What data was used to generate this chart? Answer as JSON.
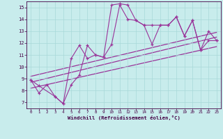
{
  "xlabel": "Windchill (Refroidissement éolien,°C)",
  "bg_color": "#c8ecec",
  "line_color": "#993399",
  "ylim": [
    6.5,
    15.5
  ],
  "xlim": [
    -0.5,
    23.5
  ],
  "yticks": [
    7,
    8,
    9,
    10,
    11,
    12,
    13,
    14,
    15
  ],
  "xticks": [
    0,
    1,
    2,
    3,
    4,
    5,
    6,
    7,
    8,
    9,
    10,
    11,
    12,
    13,
    14,
    15,
    16,
    17,
    18,
    19,
    20,
    21,
    22,
    23
  ],
  "curve1_x": [
    0,
    1,
    2,
    3,
    4,
    5,
    6,
    7,
    8,
    9,
    10,
    11,
    12,
    13,
    14,
    15,
    16,
    17,
    18,
    19,
    20,
    21,
    22,
    23
  ],
  "curve1_y": [
    8.9,
    7.8,
    8.5,
    7.5,
    6.9,
    10.7,
    11.8,
    10.7,
    11.0,
    10.8,
    15.2,
    15.3,
    15.2,
    13.9,
    13.5,
    13.5,
    13.5,
    13.5,
    14.2,
    12.6,
    13.9,
    11.4,
    13.0,
    12.2
  ],
  "curve2_x": [
    0,
    1,
    3,
    4,
    5,
    6,
    7,
    8,
    9,
    10,
    11,
    12,
    13,
    14,
    15,
    16,
    17,
    18,
    19,
    20,
    21,
    22,
    23
  ],
  "curve2_y": [
    8.9,
    8.4,
    7.5,
    6.9,
    8.5,
    9.3,
    11.8,
    11.0,
    10.8,
    11.9,
    15.2,
    14.0,
    13.9,
    13.5,
    11.9,
    13.5,
    13.5,
    14.2,
    12.6,
    13.9,
    11.4,
    12.2,
    12.2
  ],
  "line1_x": [
    0,
    23
  ],
  "line1_y": [
    8.7,
    12.5
  ],
  "line2_x": [
    0,
    23
  ],
  "line2_y": [
    9.2,
    12.9
  ],
  "line3_x": [
    0,
    23
  ],
  "line3_y": [
    8.2,
    11.7
  ]
}
